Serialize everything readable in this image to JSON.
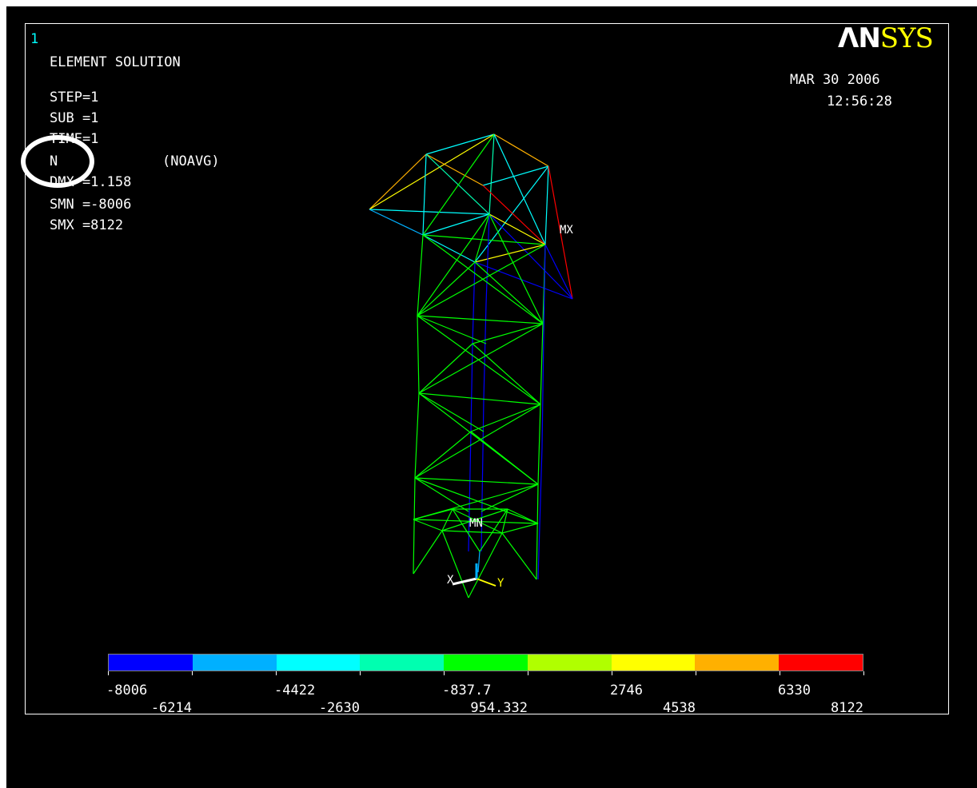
{
  "window_number": "1",
  "title": "ELEMENT SOLUTION",
  "info": {
    "step": "STEP=1",
    "sub": "SUB =1",
    "time": "TIME=1",
    "quantity": "N",
    "averaging": "(NOAVG)",
    "dmx": "DMX =1.158",
    "smn": "SMN =-8006",
    "smx": "SMX =8122"
  },
  "date": "MAR 30 2006",
  "time_of_day": "12:56:28",
  "logo": {
    "part1": "ΛN",
    "part2": "SYS"
  },
  "markers": {
    "max": "MX",
    "min": "MN"
  },
  "triad": {
    "x": "X",
    "y": "Y"
  },
  "legend": {
    "colors": [
      "#0000ff",
      "#00b0ff",
      "#00ffff",
      "#00ffb0",
      "#00ff00",
      "#b0ff00",
      "#ffff00",
      "#ffb000",
      "#ff0000"
    ],
    "upper_labels": [
      "-8006",
      "-4422",
      "-837.7",
      "2746",
      "6330"
    ],
    "lower_labels": [
      "-6214",
      "-2630",
      "954.332",
      "4538",
      "8122"
    ]
  }
}
